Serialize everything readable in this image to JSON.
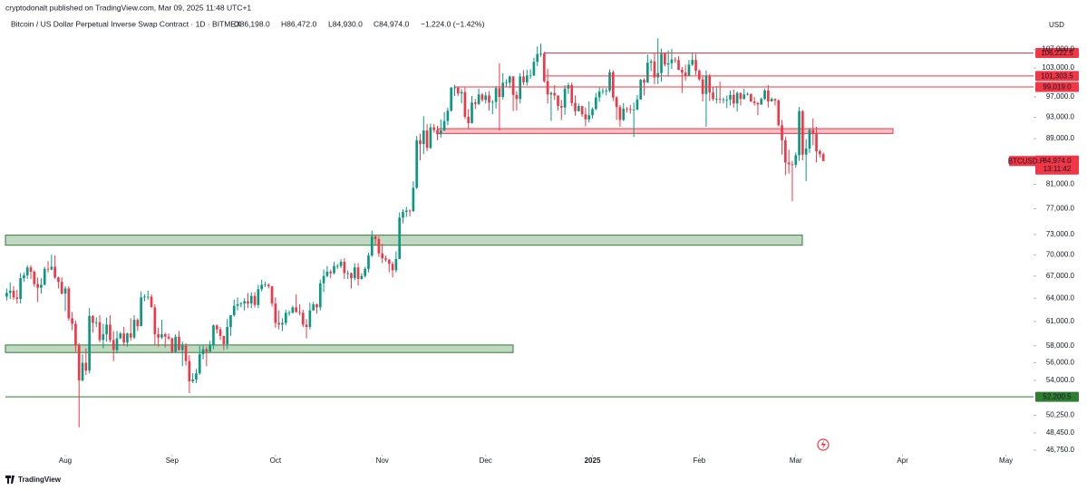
{
  "header": {
    "publisher": "cryptodonalt published on TradingView.com, Mar 09, 2025 11:48 UTC+1",
    "symbol": "Bitcoin / US Dollar Perpetual Inverse Swap Contract · 1D · BITMEX",
    "ohlc": [
      "O86,198.0",
      "H86,472.0",
      "L84,930.0",
      "C84,974.0",
      "−1,224.0 (−1.42%)"
    ]
  },
  "brand": "TradingView",
  "chart_data": {
    "type": "candlestick",
    "currency": "USD",
    "log_scale": true,
    "up_color": "#089981",
    "down_color": "#f23645",
    "ylim": [
      46488,
      115240
    ],
    "yticks": [
      {
        "value": 107000,
        "label": "107,000.0"
      },
      {
        "value": 103000,
        "label": "103,000.0"
      },
      {
        "value": 97000,
        "label": "97,000.0"
      },
      {
        "value": 93000,
        "label": "93,000.0"
      },
      {
        "value": 89000,
        "label": "89,000.0"
      },
      {
        "value": 81000,
        "label": "81,000.0"
      },
      {
        "value": 77000,
        "label": "77,000.0"
      },
      {
        "value": 73000,
        "label": "73,000.0"
      },
      {
        "value": 70000,
        "label": "70,000.0"
      },
      {
        "value": 67000,
        "label": "67,000.0"
      },
      {
        "value": 64000,
        "label": "64,000.0"
      },
      {
        "value": 61000,
        "label": "61,000.0"
      },
      {
        "value": 58000,
        "label": "58,000.0"
      },
      {
        "value": 56000,
        "label": "56,000.0"
      },
      {
        "value": 54000,
        "label": "54,000.0"
      },
      {
        "value": 50250,
        "label": "50,250.0"
      },
      {
        "value": 48450,
        "label": "48,450.0"
      },
      {
        "value": 46750,
        "label": "46,750.0"
      }
    ],
    "xlim": [
      -1.95,
      298
    ],
    "xticks": [
      {
        "value": 17,
        "label": "Aug"
      },
      {
        "value": 48,
        "label": "Sep"
      },
      {
        "value": 78,
        "label": "Oct"
      },
      {
        "value": 109,
        "label": "Nov"
      },
      {
        "value": 139,
        "label": "Dec"
      },
      {
        "value": 170,
        "label": "2025"
      },
      {
        "value": 201,
        "label": "Feb"
      },
      {
        "value": 229,
        "label": "Mar"
      },
      {
        "value": 260,
        "label": "Apr"
      },
      {
        "value": 290,
        "label": "May"
      }
    ],
    "open": [
      64200,
      64700,
      65000,
      64100,
      63900,
      66700,
      67100,
      68200,
      67600,
      65900,
      65400,
      65800,
      68000,
      67900,
      68300,
      66800,
      66200,
      64600,
      65300,
      61400,
      60700,
      58100,
      54000,
      56000,
      55100,
      61700,
      60800,
      60900,
      58700,
      59400,
      60600,
      58700,
      57500,
      58900,
      59500,
      58400,
      59500,
      59000,
      61200,
      60400,
      64100,
      64200,
      64200,
      62800,
      59400,
      59000,
      59400,
      59100,
      58900,
      57300,
      59100,
      57500,
      58000,
      56200,
      53900,
      54100,
      54800,
      57000,
      57600,
      57300,
      58100,
      60500,
      60000,
      59200,
      58200,
      60300,
      61800,
      63000,
      63200,
      63300,
      63600,
      63300,
      64300,
      63100,
      65200,
      65800,
      65800,
      65600,
      63300,
      60800,
      60600,
      60800,
      62100,
      62100,
      62800,
      62200,
      62100,
      60600,
      60300,
      62400,
      63200,
      62800,
      66000,
      67000,
      67600,
      67400,
      68400,
      68400,
      69000,
      67400,
      67400,
      66700,
      68200,
      66600,
      67000,
      68000,
      69900,
      72700,
      72300,
      70200,
      69500,
      69300,
      68700,
      67800,
      69400,
      75600,
      76500,
      76700,
      76600,
      80400,
      88700,
      88000,
      90500,
      87300,
      91100,
      90600,
      89800,
      90500,
      92300,
      94300,
      98900,
      98900,
      97700,
      98000,
      93100,
      91900,
      95900,
      95600,
      97500,
      96400,
      97300,
      95900,
      96000,
      98800,
      97000,
      99900,
      99900,
      101200,
      97400,
      96600,
      101200,
      100000,
      101400,
      101400,
      104300,
      106000,
      106100,
      100200,
      97500,
      97800,
      97300,
      95200,
      94900,
      98700,
      99400,
      95800,
      94200,
      95200,
      93600,
      92600,
      93400,
      94600,
      96900,
      98100,
      98200,
      98300,
      102100,
      96900,
      95000,
      92500,
      94700,
      94600,
      94500,
      94500,
      96500,
      100500,
      99900,
      104100,
      104400,
      101000,
      101900,
      106100,
      103700,
      104000,
      104800,
      104700,
      102600,
      102000,
      101300,
      103700,
      104700,
      102400,
      100600,
      97600,
      101400,
      97900,
      96600,
      96600,
      96500,
      96500,
      96500,
      97400,
      95700,
      97800,
      96600,
      97500,
      97600,
      96100,
      95800,
      95500,
      96600,
      98300,
      96100,
      96600,
      96300,
      91500,
      88700,
      84700,
      84400,
      84300,
      86000,
      94200,
      86100,
      87200,
      90600,
      89900,
      86700,
      86198
    ],
    "high": [
      65300,
      66100,
      65600,
      65100,
      67400,
      67500,
      68500,
      68500,
      67800,
      66800,
      66700,
      68300,
      69100,
      70000,
      69900,
      66900,
      66800,
      65600,
      65600,
      62200,
      61100,
      58300,
      57000,
      57700,
      62700,
      61800,
      61500,
      61800,
      60700,
      61500,
      61800,
      59800,
      59800,
      59700,
      60300,
      59600,
      61400,
      61800,
      61400,
      64900,
      64500,
      65000,
      64500,
      63200,
      60200,
      61200,
      59600,
      59500,
      59000,
      59400,
      59800,
      58500,
      58300,
      56900,
      54800,
      55300,
      58000,
      58000,
      57900,
      58600,
      60600,
      60600,
      60300,
      59200,
      61300,
      61800,
      63800,
      64100,
      63500,
      64000,
      64700,
      64800,
      64800,
      65800,
      66500,
      66200,
      66000,
      65600,
      64100,
      62400,
      61400,
      62500,
      62400,
      63000,
      64500,
      63200,
      62500,
      61300,
      63400,
      63500,
      63300,
      66500,
      67900,
      68400,
      67900,
      69000,
      68700,
      69400,
      69500,
      67800,
      67500,
      68800,
      68800,
      67400,
      68300,
      70300,
      73600,
      72900,
      72700,
      71600,
      69900,
      69400,
      69000,
      70500,
      76400,
      76900,
      77300,
      76900,
      81500,
      89500,
      89900,
      93200,
      91700,
      91800,
      91700,
      91400,
      92600,
      94000,
      94900,
      99000,
      99500,
      98800,
      98600,
      98900,
      94600,
      97200,
      96600,
      98700,
      97800,
      98000,
      98200,
      96400,
      99200,
      104000,
      101900,
      100600,
      101400,
      101300,
      98200,
      101900,
      102500,
      102600,
      102700,
      105200,
      107700,
      108300,
      106500,
      102800,
      98100,
      99400,
      97300,
      96400,
      99400,
      99900,
      99900,
      97300,
      95700,
      95200,
      94900,
      96100,
      94900,
      97800,
      98900,
      98800,
      98800,
      102700,
      102500,
      97200,
      95400,
      95800,
      95000,
      95400,
      95900,
      97400,
      100700,
      100800,
      105900,
      104900,
      106300,
      109500,
      107200,
      106300,
      106800,
      107100,
      105300,
      105500,
      103200,
      103700,
      104700,
      106400,
      106000,
      102700,
      101400,
      102500,
      101700,
      99000,
      99200,
      100100,
      96900,
      97300,
      98300,
      98500,
      98100,
      97900,
      98700,
      97900,
      97700,
      97000,
      96000,
      96900,
      98700,
      99400,
      96900,
      96700,
      96500,
      92500,
      89300,
      87000,
      85000,
      86500,
      95000,
      94400,
      88900,
      91000,
      92800,
      91200,
      87000,
      86472
    ],
    "low": [
      63700,
      63900,
      63800,
      63300,
      63300,
      66200,
      66600,
      66600,
      65500,
      63500,
      64600,
      65700,
      67500,
      67800,
      66600,
      65300,
      64500,
      62300,
      61100,
      59900,
      57300,
      49000,
      53900,
      54600,
      54800,
      59600,
      60300,
      58400,
      57700,
      58500,
      58400,
      56200,
      57100,
      58800,
      58000,
      57900,
      58600,
      58800,
      59800,
      60400,
      63600,
      63800,
      62800,
      58100,
      57900,
      58800,
      57800,
      58700,
      57100,
      57200,
      57400,
      55600,
      55700,
      52600,
      53700,
      53700,
      54600,
      56400,
      55600,
      57300,
      57600,
      59500,
      58700,
      57500,
      57600,
      59200,
      61600,
      62400,
      62800,
      62400,
      62700,
      62700,
      62800,
      62700,
      64900,
      65500,
      65300,
      62900,
      60200,
      60000,
      59800,
      60500,
      61700,
      62000,
      62100,
      61800,
      60300,
      58900,
      60000,
      62400,
      62000,
      62400,
      64800,
      66800,
      66700,
      67200,
      68000,
      68100,
      66600,
      66600,
      65300,
      66400,
      65700,
      66500,
      66800,
      67500,
      69700,
      71400,
      69700,
      68800,
      69000,
      67500,
      66800,
      67500,
      69400,
      74700,
      75700,
      75800,
      76500,
      80200,
      85100,
      86200,
      86700,
      87100,
      90100,
      88700,
      89200,
      90400,
      91500,
      94100,
      97200,
      97200,
      95700,
      92700,
      90800,
      91800,
      94600,
      95400,
      96000,
      95700,
      94300,
      93600,
      94700,
      90500,
      96500,
      99000,
      98800,
      94200,
      94300,
      95700,
      99400,
      99300,
      100700,
      101300,
      103400,
      105400,
      99900,
      95700,
      92300,
      96400,
      94300,
      92500,
      93500,
      97600,
      95200,
      93300,
      94100,
      93100,
      91300,
      92000,
      92800,
      94400,
      96000,
      97500,
      97300,
      97900,
      96200,
      92500,
      91200,
      92300,
      93900,
      93700,
      89300,
      94400,
      96500,
      97300,
      99900,
      102300,
      99600,
      99600,
      100100,
      103300,
      101200,
      102800,
      104100,
      102500,
      97800,
      100300,
      101300,
      103400,
      101500,
      100300,
      96100,
      91200,
      96200,
      96200,
      95700,
      95700,
      95700,
      94800,
      95300,
      94900,
      94100,
      95300,
      96500,
      97300,
      96000,
      95300,
      93400,
      95400,
      96400,
      94900,
      96100,
      95300,
      91300,
      86100,
      82500,
      82800,
      78200,
      83800,
      85000,
      85100,
      81500,
      86400,
      87800,
      84700,
      85600,
      84930
    ],
    "close": [
      64700,
      65000,
      64100,
      63900,
      66700,
      67100,
      68200,
      67600,
      65900,
      65400,
      65800,
      68000,
      67900,
      68300,
      66800,
      66200,
      64600,
      65300,
      61400,
      60700,
      58100,
      54000,
      56000,
      55100,
      61700,
      60800,
      60900,
      58700,
      59400,
      60600,
      58700,
      57500,
      58900,
      59500,
      58400,
      59500,
      59000,
      61200,
      60400,
      64100,
      64200,
      64200,
      62800,
      59400,
      59000,
      59400,
      59100,
      58900,
      57300,
      59100,
      57500,
      58000,
      56200,
      53900,
      54100,
      54800,
      57000,
      57600,
      57300,
      58100,
      60500,
      60000,
      59200,
      58200,
      60300,
      61800,
      63000,
      63200,
      63300,
      63600,
      63300,
      64300,
      63100,
      65200,
      65800,
      65800,
      65600,
      63300,
      60800,
      60600,
      60800,
      62100,
      62100,
      62800,
      62200,
      62100,
      60600,
      60300,
      62400,
      63200,
      62800,
      66000,
      67000,
      67600,
      67400,
      68400,
      68400,
      69000,
      67400,
      67400,
      66700,
      68200,
      66600,
      67000,
      68000,
      69900,
      72700,
      72300,
      70200,
      69500,
      69300,
      68700,
      67800,
      69400,
      75600,
      76500,
      76700,
      76600,
      80400,
      88700,
      88000,
      90500,
      87300,
      91100,
      90600,
      89800,
      90500,
      92300,
      94300,
      98900,
      98900,
      97700,
      98000,
      93100,
      91900,
      95900,
      95600,
      97500,
      96400,
      97300,
      95900,
      96000,
      98800,
      97000,
      99900,
      99900,
      101200,
      97400,
      96600,
      101200,
      100000,
      101400,
      101400,
      104300,
      106000,
      106100,
      100200,
      97500,
      97800,
      97300,
      95200,
      94900,
      98700,
      99400,
      95800,
      94200,
      95200,
      93600,
      92600,
      93400,
      94600,
      96900,
      98100,
      98200,
      98300,
      102100,
      96900,
      95000,
      92500,
      94700,
      94600,
      94500,
      94500,
      96500,
      100500,
      99900,
      104100,
      104400,
      101000,
      101900,
      106100,
      103700,
      104000,
      104800,
      104700,
      102600,
      102000,
      101300,
      103700,
      104700,
      102400,
      100600,
      97600,
      101400,
      97900,
      96600,
      96600,
      96500,
      96500,
      96500,
      97400,
      95700,
      97800,
      96600,
      97500,
      97600,
      96100,
      95800,
      95500,
      96600,
      98300,
      96100,
      96600,
      96300,
      91500,
      88700,
      84700,
      84400,
      84300,
      86000,
      94200,
      86100,
      87200,
      90600,
      89900,
      86700,
      86198,
      84974
    ],
    "levels": [
      {
        "value": 106222.5,
        "label": "106,222.5",
        "color": "#f23645"
      },
      {
        "value": 101303.5,
        "label": "101,303.5",
        "color": "#f23645"
      },
      {
        "value": 99019,
        "label": "99,019.0",
        "color": "#f23645"
      },
      {
        "value": 52200.5,
        "label": "52,200.5",
        "color": "#2e7d32"
      }
    ],
    "zones": [
      {
        "low": 89950,
        "high": 90850,
        "color": "#f23645"
      },
      {
        "low": 71400,
        "high": 72900,
        "color": "#2e7d32"
      },
      {
        "low": 57200,
        "high": 58100,
        "color": "#2e7d32"
      }
    ],
    "last_price": {
      "value": 84974,
      "label": "84,974.0",
      "countdown": "13:11:42",
      "symbol": "BTCUSD.P"
    }
  }
}
